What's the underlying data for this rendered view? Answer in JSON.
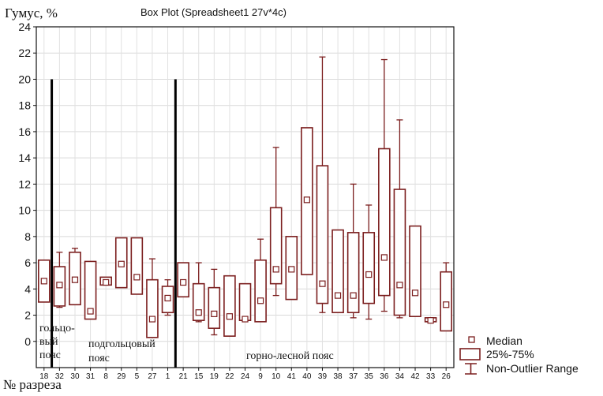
{
  "chart_data": {
    "type": "box",
    "title": "Box Plot (Spreadsheet1 27v*4c)",
    "ylabel": "Гумус, %",
    "xlabel": "№ разреза",
    "ylim": [
      -2,
      24
    ],
    "yticks": [
      0,
      2,
      4,
      6,
      8,
      10,
      12,
      14,
      16,
      18,
      20,
      22,
      24
    ],
    "zones": [
      {
        "label_lines": [
          "гольцо-",
          "вый",
          "пояс"
        ]
      },
      {
        "label_lines": [
          "подгольцовый",
          "пояс"
        ]
      },
      {
        "label_lines": [
          "горно-лесной пояс"
        ]
      }
    ],
    "legend": {
      "median": "Median",
      "box": "25%-75%",
      "range": "Non-Outlier Range"
    },
    "boxes": [
      {
        "label": "18",
        "min": 3.0,
        "q1": 3.0,
        "median": 4.6,
        "q3": 6.2,
        "max": 6.2
      },
      {
        "label": "32",
        "min": 2.6,
        "q1": 2.7,
        "median": 4.3,
        "q3": 5.7,
        "max": 6.8
      },
      {
        "label": "30",
        "min": 2.8,
        "q1": 2.8,
        "median": 4.7,
        "q3": 6.8,
        "max": 7.1
      },
      {
        "label": "31",
        "min": 1.7,
        "q1": 1.7,
        "median": 2.3,
        "q3": 6.1,
        "max": 6.1
      },
      {
        "label": "8",
        "min": 4.3,
        "q1": 4.3,
        "median": 4.5,
        "q3": 4.9,
        "max": 4.9
      },
      {
        "label": "29",
        "min": 4.1,
        "q1": 4.1,
        "median": 5.9,
        "q3": 7.9,
        "max": 7.9
      },
      {
        "label": "5",
        "min": 3.6,
        "q1": 3.6,
        "median": 4.9,
        "q3": 7.9,
        "max": 7.9
      },
      {
        "label": "27",
        "min": 0.3,
        "q1": 0.3,
        "median": 1.7,
        "q3": 4.7,
        "max": 6.3
      },
      {
        "label": "1",
        "min": 2.0,
        "q1": 2.2,
        "median": 3.3,
        "q3": 4.2,
        "max": 4.7
      },
      {
        "label": "21",
        "min": 3.4,
        "q1": 3.4,
        "median": 4.5,
        "q3": 6.0,
        "max": 6.0
      },
      {
        "label": "15",
        "min": 1.5,
        "q1": 1.6,
        "median": 2.2,
        "q3": 4.4,
        "max": 6.0
      },
      {
        "label": "19",
        "min": 0.5,
        "q1": 1.0,
        "median": 2.1,
        "q3": 4.1,
        "max": 5.5
      },
      {
        "label": "22",
        "min": 0.4,
        "q1": 0.4,
        "median": 1.9,
        "q3": 5.0,
        "max": 5.0
      },
      {
        "label": "24",
        "min": 1.6,
        "q1": 1.6,
        "median": 1.7,
        "q3": 4.4,
        "max": 4.4
      },
      {
        "label": "9",
        "min": 1.5,
        "q1": 1.5,
        "median": 3.1,
        "q3": 6.2,
        "max": 7.8
      },
      {
        "label": "10",
        "min": 3.5,
        "q1": 4.4,
        "median": 5.5,
        "q3": 10.2,
        "max": 14.8
      },
      {
        "label": "41",
        "min": 3.2,
        "q1": 3.2,
        "median": 5.5,
        "q3": 8.0,
        "max": 8.0
      },
      {
        "label": "40",
        "min": 5.1,
        "q1": 5.1,
        "median": 10.8,
        "q3": 16.3,
        "max": 16.3
      },
      {
        "label": "39",
        "min": 2.2,
        "q1": 2.9,
        "median": 4.4,
        "q3": 13.4,
        "max": 21.7
      },
      {
        "label": "38",
        "min": 2.2,
        "q1": 2.2,
        "median": 3.5,
        "q3": 8.5,
        "max": 8.5
      },
      {
        "label": "37",
        "min": 1.8,
        "q1": 2.2,
        "median": 3.5,
        "q3": 8.3,
        "max": 12.0
      },
      {
        "label": "35",
        "min": 1.7,
        "q1": 2.9,
        "median": 5.1,
        "q3": 8.3,
        "max": 10.4
      },
      {
        "label": "36",
        "min": 2.3,
        "q1": 3.5,
        "median": 6.4,
        "q3": 14.7,
        "max": 21.5
      },
      {
        "label": "34",
        "min": 1.8,
        "q1": 2.0,
        "median": 4.3,
        "q3": 11.6,
        "max": 16.9
      },
      {
        "label": "42",
        "min": 1.9,
        "q1": 1.9,
        "median": 3.7,
        "q3": 8.8,
        "max": 8.8
      },
      {
        "label": "33",
        "min": 1.5,
        "q1": 1.5,
        "median": 1.6,
        "q3": 1.8,
        "max": 1.8
      },
      {
        "label": "26",
        "min": 0.8,
        "q1": 0.8,
        "median": 2.8,
        "q3": 5.3,
        "max": 6.0
      }
    ],
    "boundaries_after_index": [
      0,
      8
    ],
    "boundary_height_value": 20,
    "colors": {
      "box": "#7b1e1e",
      "median_fill": "#ffffff",
      "axis": "#111111",
      "boundary": "#000000"
    },
    "grid": true
  }
}
